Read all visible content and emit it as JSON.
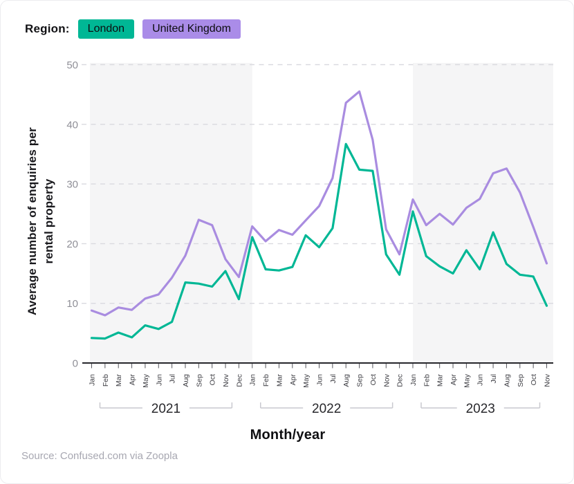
{
  "legend": {
    "label": "Region:",
    "items": [
      {
        "name": "London",
        "color": "#00b795"
      },
      {
        "name": "United Kingdom",
        "color": "#aa8ce8"
      }
    ]
  },
  "chart_data": {
    "type": "line",
    "xlabel": "Month/year",
    "ylabel": "Average number of enquiries per rental property",
    "ylabel_lines": [
      "Average number of enquiries per",
      "rental property"
    ],
    "ylim": [
      0,
      50
    ],
    "yticks": [
      0,
      10,
      20,
      30,
      40,
      50
    ],
    "grid": "horizontal-dashed",
    "x": [
      "Jan",
      "Feb",
      "Mar",
      "Apr",
      "May",
      "Jun",
      "Jul",
      "Aug",
      "Sep",
      "Oct",
      "Nov",
      "Dec",
      "Jan",
      "Feb",
      "Mar",
      "Apr",
      "May",
      "Jun",
      "Jul",
      "Aug",
      "Sep",
      "Oct",
      "Nov",
      "Dec",
      "Jan",
      "Feb",
      "Mar",
      "Apr",
      "May",
      "Jun",
      "Jul",
      "Aug",
      "Sep",
      "Oct",
      "Nov"
    ],
    "year_groups": [
      {
        "label": "2021",
        "count": 12,
        "shaded": true
      },
      {
        "label": "2022",
        "count": 12,
        "shaded": false
      },
      {
        "label": "2023",
        "count": 11,
        "shaded": true
      }
    ],
    "plot_bands": {
      "shaded_color": "#f5f5f6"
    },
    "series": [
      {
        "name": "London",
        "color": "#00b795",
        "values": [
          4.2,
          4.1,
          5.1,
          4.3,
          6.3,
          5.7,
          6.9,
          13.5,
          13.3,
          12.8,
          15.4,
          10.7,
          21.1,
          15.7,
          15.5,
          16.1,
          21.4,
          19.4,
          22.6,
          36.7,
          32.4,
          32.2,
          18.2,
          14.8,
          25.4,
          17.9,
          16.2,
          15.0,
          18.9,
          15.7,
          21.9,
          16.6,
          14.8,
          14.5,
          9.6
        ]
      },
      {
        "name": "United Kingdom",
        "color": "#a98ce0",
        "values": [
          8.8,
          8.0,
          9.3,
          8.9,
          10.8,
          11.5,
          14.3,
          18.0,
          24.0,
          23.1,
          17.4,
          14.4,
          22.9,
          20.4,
          22.3,
          21.5,
          23.9,
          26.3,
          31.0,
          43.6,
          45.5,
          37.4,
          22.4,
          18.2,
          27.4,
          23.1,
          25.0,
          23.2,
          26.0,
          27.5,
          31.8,
          32.6,
          28.6,
          22.8,
          16.7
        ]
      }
    ]
  },
  "source": {
    "text": "Source: Confused.com via Zoopla"
  }
}
